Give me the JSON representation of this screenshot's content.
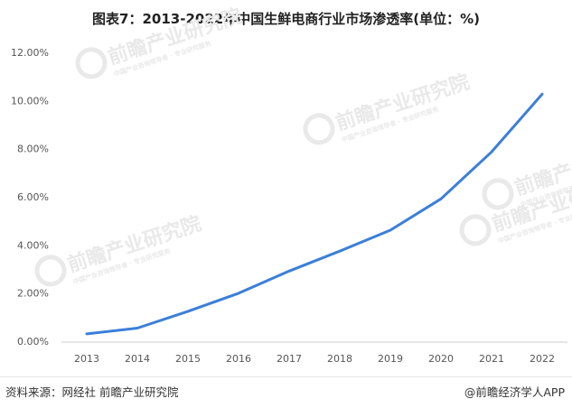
{
  "title": "图表7：2013-2022年中国生鲜电商行业市场渗透率(单位：%)",
  "footer": {
    "source": "资料来源：网经社 前瞻产业研究院",
    "brand": "@前瞻经济学人APP"
  },
  "watermark": {
    "text": "前瞻产业研究院",
    "subtext": "中国产业咨询领导者 · 专业研究服务"
  },
  "colors": {
    "line": "#3b7fd9",
    "grid": "#dddddd",
    "watermark": "#e9e9e9"
  },
  "chart_data": {
    "type": "line",
    "categories": [
      "2013",
      "2014",
      "2015",
      "2016",
      "2017",
      "2018",
      "2019",
      "2020",
      "2021",
      "2022"
    ],
    "series": [
      {
        "values": [
          0.34,
          0.58,
          1.28,
          2.03,
          2.95,
          3.78,
          4.65,
          5.95,
          7.9,
          10.3
        ]
      }
    ],
    "y_ticks": [
      "0.00%",
      "2.00%",
      "4.00%",
      "6.00%",
      "8.00%",
      "10.00%",
      "12.00%"
    ],
    "ylim": [
      0,
      12
    ],
    "grid": false,
    "legend": "none"
  }
}
